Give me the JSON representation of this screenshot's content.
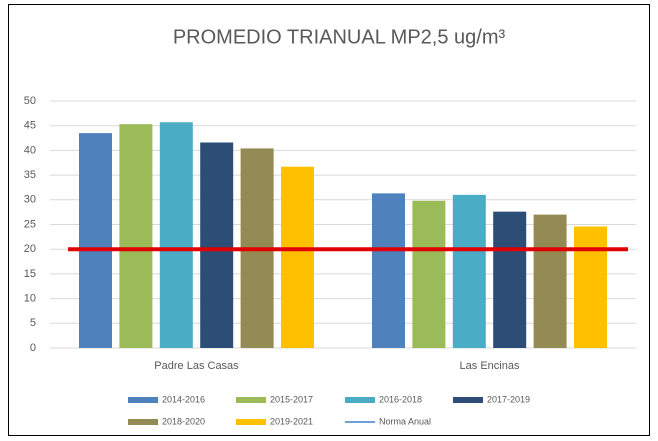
{
  "chart_data": {
    "type": "bar",
    "title": "PROMEDIO TRIANUAL MP2,5 ug/m³",
    "categories": [
      "Padre Las Casas",
      "Las Encinas"
    ],
    "series": [
      {
        "name": "2014-2016",
        "color": "#4f81bd",
        "values": [
          43.5,
          31.3
        ]
      },
      {
        "name": "2015-2017",
        "color": "#9bbb59",
        "values": [
          45.3,
          29.8
        ]
      },
      {
        "name": "2016-2018",
        "color": "#4bacc6",
        "values": [
          45.7,
          31.0
        ]
      },
      {
        "name": "2017-2019",
        "color": "#2c4d75",
        "values": [
          41.6,
          27.6
        ]
      },
      {
        "name": "2018-2020",
        "color": "#948a54",
        "values": [
          40.4,
          27.0
        ]
      },
      {
        "name": "2019-2021",
        "color": "#ffc000",
        "values": [
          36.7,
          24.6
        ]
      },
      {
        "name": "Norma Anual",
        "type": "line",
        "color": "#e00000",
        "values": [
          20,
          20
        ]
      }
    ],
    "ylim": [
      0,
      50
    ],
    "yticks": [
      0,
      5,
      10,
      15,
      20,
      25,
      30,
      35,
      40,
      45,
      50
    ],
    "grid": true,
    "legend": "bottom"
  }
}
